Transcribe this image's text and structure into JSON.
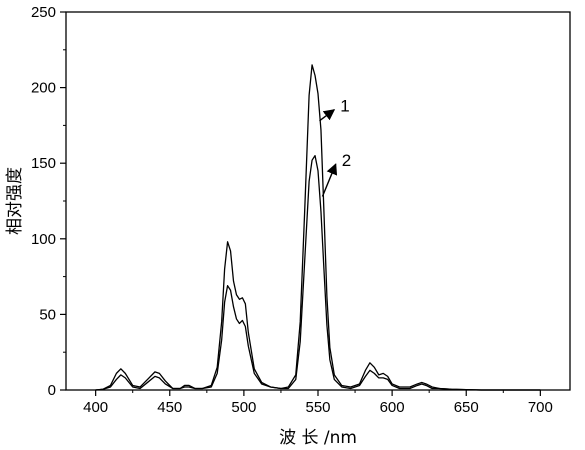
{
  "chart_data": {
    "type": "line",
    "title": "",
    "xlabel": "波 长 /nm",
    "ylabel": "相对强度",
    "xlim": [
      380,
      720
    ],
    "ylim": [
      0,
      250
    ],
    "x_ticks": [
      400,
      450,
      500,
      550,
      600,
      650,
      700
    ],
    "y_ticks": [
      0,
      50,
      100,
      150,
      200,
      250
    ],
    "grid": false,
    "legend": "none",
    "line_color": "#000000",
    "annotations": [
      {
        "label": "1",
        "series_index": 0,
        "arrow_to": [
          551,
          178
        ],
        "label_at": [
          565,
          188
        ]
      },
      {
        "label": "2",
        "series_index": 1,
        "arrow_to": [
          553,
          128
        ],
        "label_at": [
          566,
          152
        ]
      }
    ],
    "series": [
      {
        "points": [
          [
            400,
            0
          ],
          [
            405,
            0.5
          ],
          [
            410,
            3
          ],
          [
            414,
            11
          ],
          [
            417,
            14
          ],
          [
            420,
            11
          ],
          [
            425,
            3
          ],
          [
            430,
            2
          ],
          [
            435,
            7
          ],
          [
            440,
            12
          ],
          [
            443,
            11
          ],
          [
            447,
            6
          ],
          [
            452,
            1
          ],
          [
            457,
            1
          ],
          [
            460,
            3
          ],
          [
            463,
            3
          ],
          [
            467,
            1
          ],
          [
            472,
            1
          ],
          [
            478,
            3
          ],
          [
            482,
            15
          ],
          [
            485,
            45
          ],
          [
            487,
            80
          ],
          [
            489,
            98
          ],
          [
            491,
            92
          ],
          [
            493,
            72
          ],
          [
            495,
            63
          ],
          [
            497,
            60
          ],
          [
            499,
            61
          ],
          [
            501,
            57
          ],
          [
            503,
            38
          ],
          [
            507,
            14
          ],
          [
            512,
            5
          ],
          [
            518,
            2
          ],
          [
            525,
            1
          ],
          [
            530,
            2
          ],
          [
            535,
            10
          ],
          [
            538,
            45
          ],
          [
            541,
            118
          ],
          [
            544,
            195
          ],
          [
            546,
            215
          ],
          [
            548,
            208
          ],
          [
            550,
            196
          ],
          [
            552,
            172
          ],
          [
            554,
            118
          ],
          [
            556,
            62
          ],
          [
            558,
            28
          ],
          [
            561,
            10
          ],
          [
            566,
            3
          ],
          [
            572,
            2
          ],
          [
            578,
            4
          ],
          [
            582,
            13
          ],
          [
            585,
            18
          ],
          [
            588,
            15
          ],
          [
            591,
            10
          ],
          [
            594,
            11
          ],
          [
            597,
            9
          ],
          [
            600,
            4
          ],
          [
            605,
            2
          ],
          [
            612,
            2
          ],
          [
            617,
            4
          ],
          [
            620,
            5
          ],
          [
            623,
            4
          ],
          [
            627,
            2
          ],
          [
            632,
            1
          ],
          [
            640,
            0.5
          ],
          [
            660,
            0
          ],
          [
            700,
            0
          ]
        ]
      },
      {
        "points": [
          [
            400,
            0
          ],
          [
            405,
            0.5
          ],
          [
            410,
            2
          ],
          [
            414,
            7
          ],
          [
            417,
            10
          ],
          [
            420,
            8
          ],
          [
            425,
            2
          ],
          [
            430,
            1
          ],
          [
            435,
            5
          ],
          [
            440,
            9
          ],
          [
            443,
            8
          ],
          [
            447,
            4
          ],
          [
            452,
            1
          ],
          [
            457,
            1
          ],
          [
            460,
            2
          ],
          [
            463,
            2
          ],
          [
            467,
            1
          ],
          [
            472,
            1
          ],
          [
            478,
            2
          ],
          [
            482,
            11
          ],
          [
            485,
            33
          ],
          [
            487,
            58
          ],
          [
            489,
            69
          ],
          [
            491,
            66
          ],
          [
            493,
            55
          ],
          [
            495,
            47
          ],
          [
            497,
            44
          ],
          [
            499,
            46
          ],
          [
            501,
            42
          ],
          [
            503,
            29
          ],
          [
            507,
            11
          ],
          [
            512,
            4
          ],
          [
            518,
            2
          ],
          [
            525,
            1
          ],
          [
            530,
            1
          ],
          [
            535,
            7
          ],
          [
            538,
            32
          ],
          [
            541,
            85
          ],
          [
            544,
            138
          ],
          [
            546,
            152
          ],
          [
            548,
            155
          ],
          [
            550,
            145
          ],
          [
            552,
            118
          ],
          [
            554,
            80
          ],
          [
            556,
            43
          ],
          [
            558,
            20
          ],
          [
            561,
            7
          ],
          [
            566,
            2
          ],
          [
            572,
            1
          ],
          [
            578,
            3
          ],
          [
            582,
            9
          ],
          [
            585,
            13
          ],
          [
            588,
            11
          ],
          [
            591,
            8
          ],
          [
            594,
            8
          ],
          [
            597,
            7
          ],
          [
            600,
            3
          ],
          [
            605,
            1
          ],
          [
            612,
            1
          ],
          [
            617,
            3
          ],
          [
            620,
            4
          ],
          [
            623,
            3
          ],
          [
            627,
            1
          ],
          [
            632,
            1
          ],
          [
            640,
            0.5
          ],
          [
            660,
            0
          ],
          [
            700,
            0
          ]
        ]
      }
    ]
  }
}
